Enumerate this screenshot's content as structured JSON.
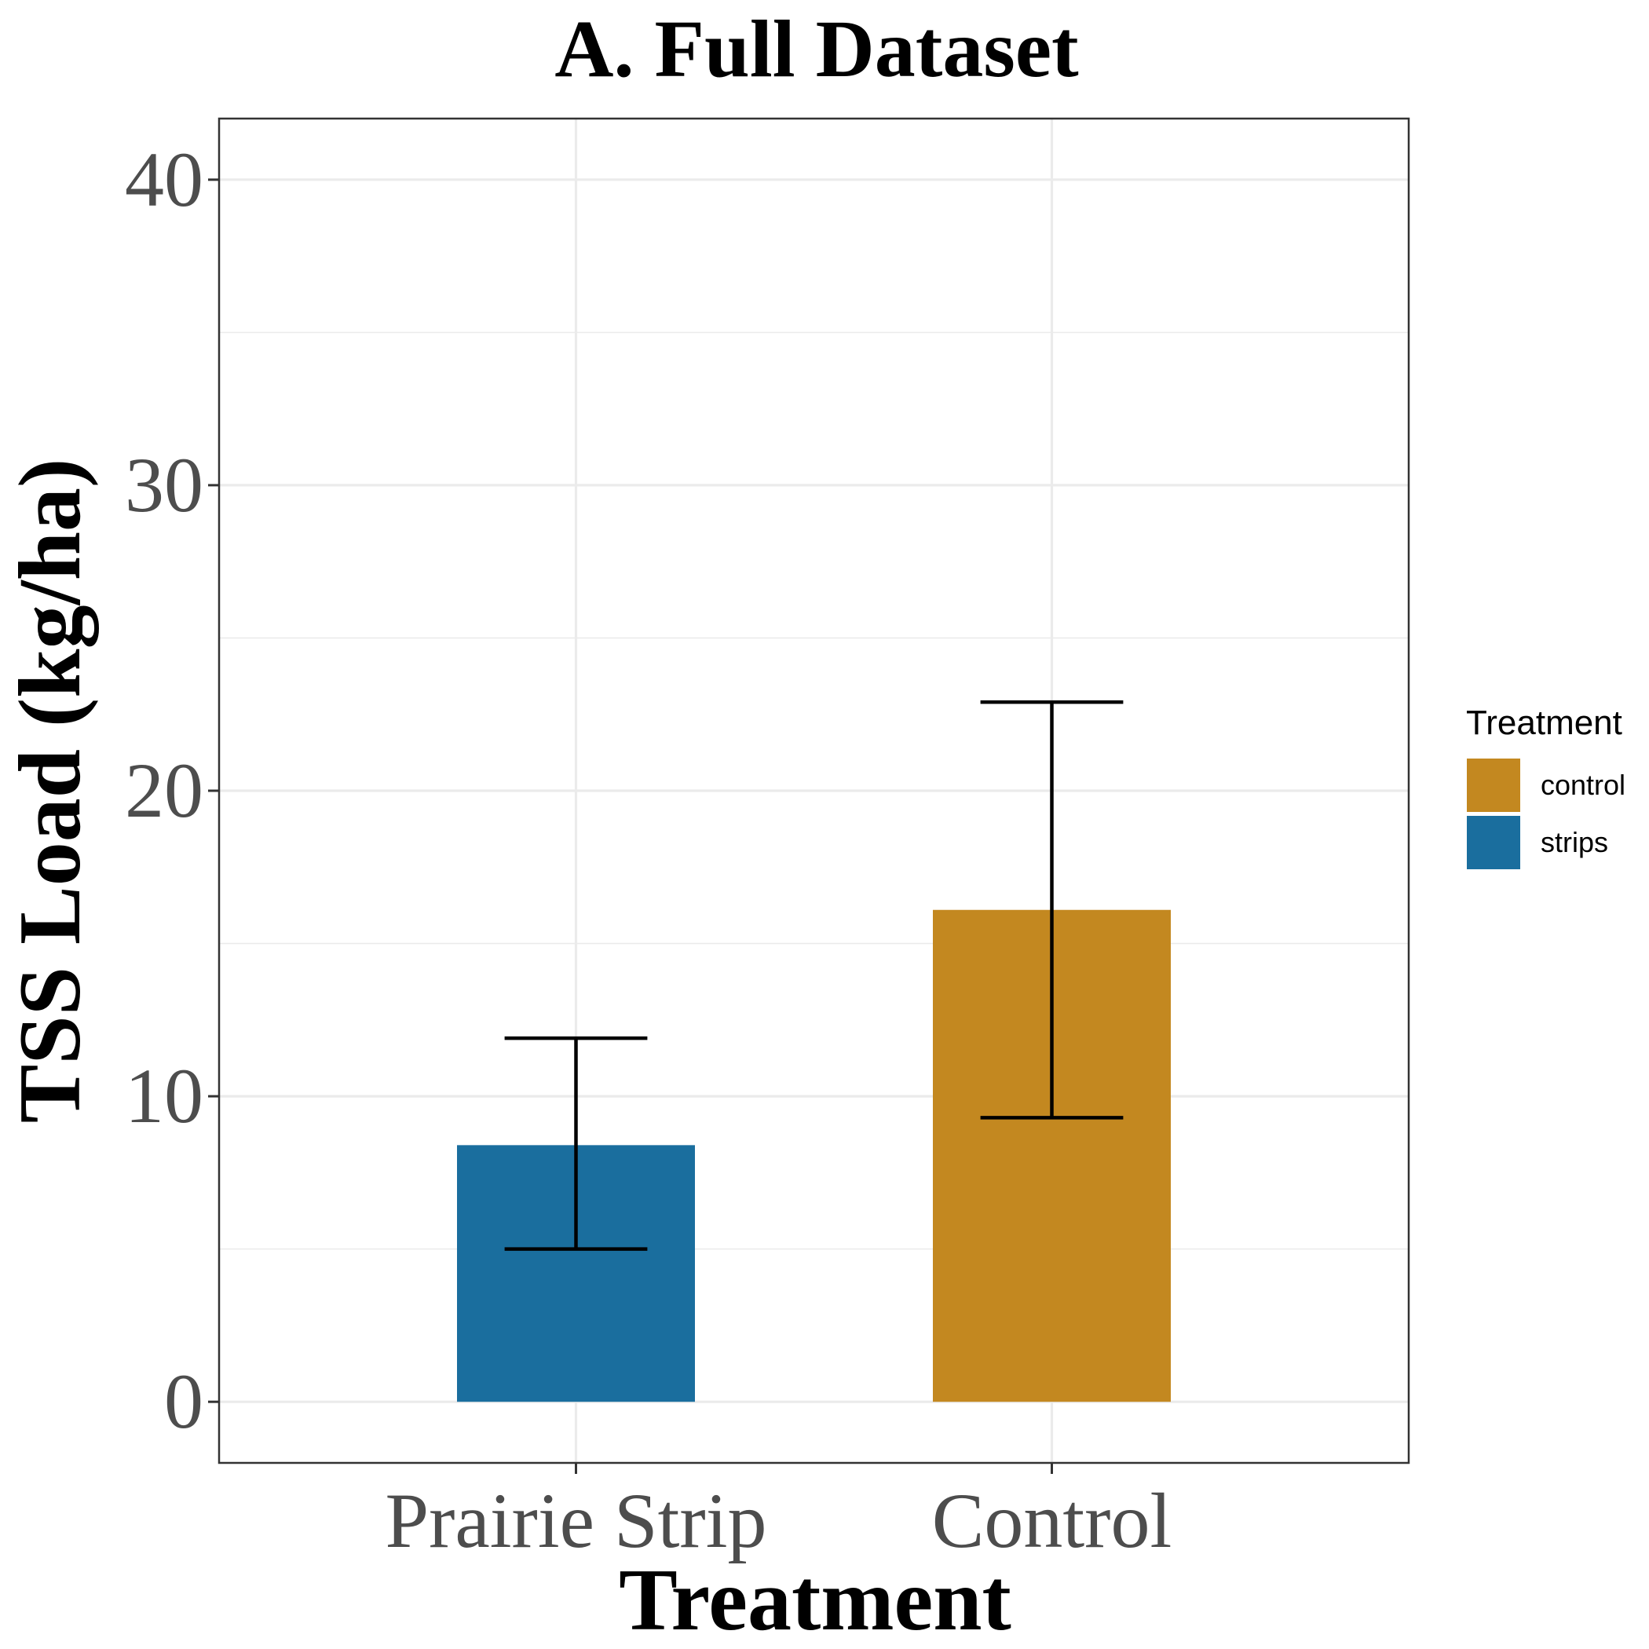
{
  "chart_data": {
    "type": "bar",
    "title": "A. Full Dataset",
    "xlabel": "Treatment",
    "ylabel": "TSS Load (kg/ha)",
    "ylim": [
      -2,
      42
    ],
    "yticks": [
      0,
      10,
      20,
      30,
      40
    ],
    "grid": true,
    "categories": [
      "Prairie Strip",
      "Control"
    ],
    "values": [
      8.4,
      16.1
    ],
    "error_low": [
      5.0,
      9.3
    ],
    "error_high": [
      11.9,
      22.9
    ],
    "bar_groups": [
      "strips",
      "control"
    ],
    "legend": {
      "title": "Treatment",
      "position": "right",
      "entries": [
        {
          "key": "control",
          "label": "control",
          "color": "#c38820"
        },
        {
          "key": "strips",
          "label": "strips",
          "color": "#1a6e9e"
        }
      ]
    }
  }
}
